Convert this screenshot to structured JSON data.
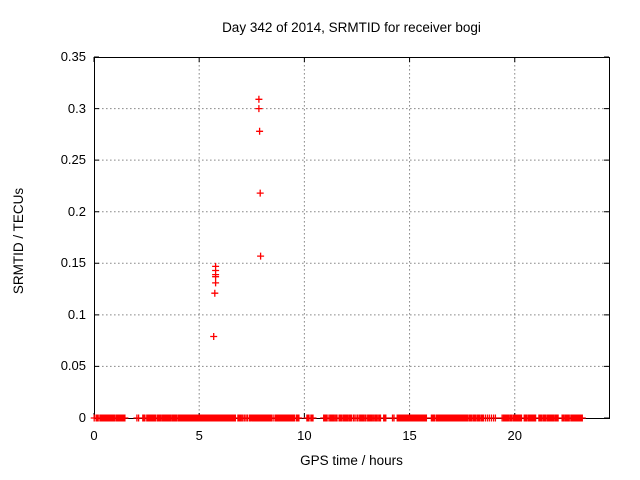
{
  "figure": {
    "background_color": "#ffffff",
    "frame_color": "#000000",
    "grid_color": "#8a8a8a",
    "text_color": "#000000"
  },
  "chart_data": {
    "type": "scatter",
    "title": "Day 342 of 2014, SRMTID for receiver bogi",
    "xlabel": "GPS time / hours",
    "ylabel": "SRMTID / TECUs",
    "xlim": [
      0,
      24.48
    ],
    "ylim": [
      0,
      0.35
    ],
    "grid": {
      "style": "dotted",
      "color": "#8a8a8a",
      "x_at": [
        5,
        10,
        15,
        20
      ],
      "y_at": [
        0.05,
        0.1,
        0.15,
        0.2,
        0.25,
        0.3
      ]
    },
    "xticks": [
      {
        "value": 0,
        "label": "0"
      },
      {
        "value": 5,
        "label": "5"
      },
      {
        "value": 10,
        "label": "10"
      },
      {
        "value": 15,
        "label": "15"
      },
      {
        "value": 20,
        "label": "20"
      }
    ],
    "yticks": [
      {
        "value": 0,
        "label": "0"
      },
      {
        "value": 0.05,
        "label": "0.05"
      },
      {
        "value": 0.1,
        "label": "0.1"
      },
      {
        "value": 0.15,
        "label": "0.15"
      },
      {
        "value": 0.2,
        "label": "0.2"
      },
      {
        "value": 0.25,
        "label": "0.25"
      },
      {
        "value": 0.3,
        "label": "0.3"
      },
      {
        "value": 0.35,
        "label": "0.35"
      }
    ],
    "marker": "plus",
    "marker_color": "#ff0000",
    "marker_size": 7,
    "points": [
      [
        5.78,
        0.147
      ],
      [
        5.78,
        0.143
      ],
      [
        5.78,
        0.139
      ],
      [
        5.78,
        0.137
      ],
      [
        5.78,
        0.131
      ],
      [
        5.74,
        0.121
      ],
      [
        5.69,
        0.079
      ],
      [
        7.84,
        0.309
      ],
      [
        7.84,
        0.3
      ],
      [
        7.87,
        0.278
      ],
      [
        7.9,
        0.218
      ],
      [
        7.92,
        0.157
      ]
    ],
    "baseline_value": 0,
    "baseline_segments": [
      [
        0.0,
        0.02
      ],
      [
        0.1,
        0.2
      ],
      [
        0.28,
        0.45
      ],
      [
        0.51,
        0.99
      ],
      [
        1.06,
        1.47
      ],
      [
        2.04,
        2.12
      ],
      [
        2.32,
        2.42
      ],
      [
        2.51,
        2.93
      ],
      [
        3.01,
        3.12
      ],
      [
        3.18,
        3.31
      ],
      [
        3.37,
        3.59
      ],
      [
        3.65,
        3.78
      ],
      [
        3.84,
        3.94
      ],
      [
        4.01,
        6.72
      ],
      [
        6.84,
        7.0
      ],
      [
        7.07,
        7.22
      ],
      [
        7.29,
        7.38
      ],
      [
        7.44,
        8.4
      ],
      [
        8.46,
        8.55
      ],
      [
        8.63,
        8.81
      ],
      [
        8.82,
        9.05
      ],
      [
        9.11,
        9.53
      ],
      [
        9.62,
        9.74
      ],
      [
        10.12,
        10.22
      ],
      [
        10.31,
        10.41
      ],
      [
        10.92,
        11.08
      ],
      [
        11.17,
        11.3
      ],
      [
        11.36,
        11.55
      ],
      [
        11.65,
        11.77
      ],
      [
        11.84,
        12.0
      ],
      [
        12.06,
        12.19
      ],
      [
        12.25,
        12.34
      ],
      [
        12.41,
        12.5
      ],
      [
        12.55,
        12.63
      ],
      [
        12.68,
        12.87
      ],
      [
        12.93,
        13.01
      ],
      [
        13.07,
        13.17
      ],
      [
        13.23,
        13.62
      ],
      [
        13.77,
        13.87
      ],
      [
        14.19,
        14.26
      ],
      [
        14.41,
        15.52
      ],
      [
        15.58,
        15.8
      ],
      [
        16.04,
        16.2
      ],
      [
        16.28,
        16.38
      ],
      [
        16.44,
        17.75
      ],
      [
        17.82,
        17.94
      ],
      [
        18.01,
        18.13
      ],
      [
        18.2,
        18.32
      ],
      [
        18.39,
        18.51
      ],
      [
        18.58,
        18.63
      ],
      [
        18.7,
        18.79
      ],
      [
        18.86,
        18.92
      ],
      [
        18.99,
        19.08
      ],
      [
        19.4,
        19.84
      ],
      [
        19.91,
        20.32
      ],
      [
        20.45,
        20.57
      ],
      [
        20.64,
        20.99
      ],
      [
        21.15,
        21.3
      ],
      [
        21.37,
        21.49
      ],
      [
        21.56,
        22.06
      ],
      [
        22.25,
        22.63
      ],
      [
        22.7,
        22.86
      ],
      [
        22.92,
        23.21
      ]
    ]
  }
}
